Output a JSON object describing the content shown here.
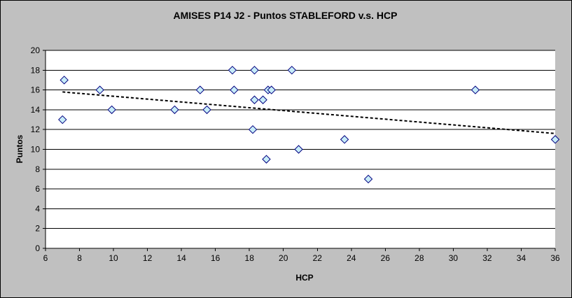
{
  "chart_data": {
    "type": "scatter",
    "title": "AMISES P14 J2 - Puntos STABLEFORD v.s. HCP",
    "xlabel": "HCP",
    "ylabel": "Puntos",
    "xlim": [
      6,
      36
    ],
    "ylim": [
      0,
      20
    ],
    "x_ticks": [
      6,
      8,
      10,
      12,
      14,
      16,
      18,
      20,
      22,
      24,
      26,
      28,
      30,
      32,
      34,
      36
    ],
    "y_ticks": [
      0,
      2,
      4,
      6,
      8,
      10,
      12,
      14,
      16,
      18,
      20
    ],
    "grid": "horizontal",
    "legend": "none",
    "plot_background": "#ffffff",
    "frame_background": "#c0c0c0",
    "marker": {
      "shape": "diamond",
      "fill": "#c6ecf8",
      "stroke": "#000080"
    },
    "series": [
      {
        "points": [
          {
            "x": 7.0,
            "y": 13
          },
          {
            "x": 7.1,
            "y": 17
          },
          {
            "x": 9.2,
            "y": 16
          },
          {
            "x": 9.9,
            "y": 14
          },
          {
            "x": 13.6,
            "y": 14
          },
          {
            "x": 15.1,
            "y": 16
          },
          {
            "x": 15.5,
            "y": 14
          },
          {
            "x": 17.0,
            "y": 18
          },
          {
            "x": 17.1,
            "y": 16
          },
          {
            "x": 18.2,
            "y": 12
          },
          {
            "x": 18.3,
            "y": 18
          },
          {
            "x": 18.3,
            "y": 15
          },
          {
            "x": 18.8,
            "y": 15
          },
          {
            "x": 19.0,
            "y": 9
          },
          {
            "x": 19.1,
            "y": 16
          },
          {
            "x": 19.3,
            "y": 16
          },
          {
            "x": 20.5,
            "y": 18
          },
          {
            "x": 20.9,
            "y": 10
          },
          {
            "x": 23.6,
            "y": 11
          },
          {
            "x": 25.0,
            "y": 7
          },
          {
            "x": 31.3,
            "y": 16
          },
          {
            "x": 36.0,
            "y": 11
          }
        ]
      }
    ],
    "trendline": {
      "type": "linear",
      "x": [
        7.0,
        36.0
      ],
      "y": [
        15.8,
        11.6
      ],
      "style": "dashed",
      "color": "#000000"
    }
  }
}
